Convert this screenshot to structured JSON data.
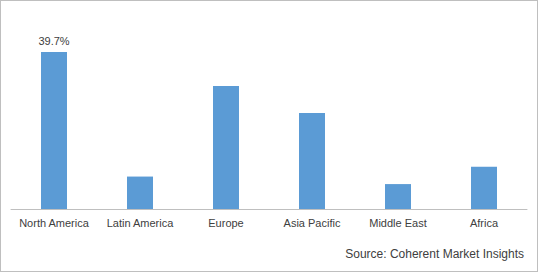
{
  "chart_data": {
    "type": "bar",
    "categories": [
      "North America",
      "Latin America",
      "Europe",
      "Asia Pacific",
      "Middle East",
      "Africa"
    ],
    "values": [
      39.7,
      8.2,
      31.1,
      24.3,
      6.3,
      10.7
    ],
    "value_labels": [
      "39.7%",
      null,
      null,
      null,
      null,
      null
    ],
    "data_labels": true,
    "color": "#5b9bd5",
    "ylim": [
      0,
      45
    ],
    "grid": false,
    "tick_labels": "x",
    "source": "Source: Coherent Market Insights"
  }
}
